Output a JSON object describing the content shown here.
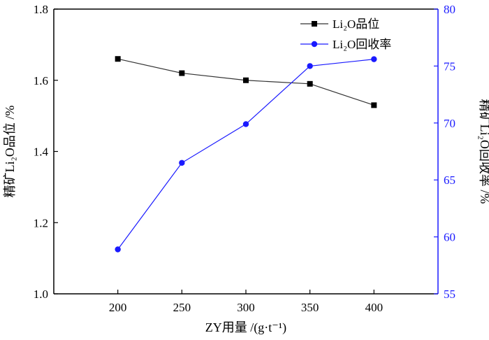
{
  "chart_data": {
    "type": "line",
    "x": [
      200,
      250,
      300,
      350,
      400
    ],
    "xticks": [
      "200",
      "250",
      "300",
      "350",
      "400"
    ],
    "xlabel": "ZY用量 /(g·t⁻¹)",
    "xlim": [
      150,
      450
    ],
    "y_left": {
      "label": "精矿Li₂O品位 /%",
      "ticks": [
        "1.0",
        "1.2",
        "1.4",
        "1.6",
        "1.8"
      ],
      "lim": [
        1.0,
        1.8
      ],
      "color": "#000000"
    },
    "y_right": {
      "label": "精矿Li₂O回收率 /%",
      "ticks": [
        "55",
        "60",
        "65",
        "70",
        "75",
        "80"
      ],
      "lim": [
        55,
        80
      ],
      "color": "#1a1aff"
    },
    "series": [
      {
        "name": "Li₂O品位",
        "axis": "left",
        "marker": "square",
        "color": "#000000",
        "line_color": "#333333",
        "values": [
          1.66,
          1.62,
          1.6,
          1.59,
          1.53
        ]
      },
      {
        "name": "Li₂O回收率",
        "axis": "right",
        "marker": "circle",
        "color": "#1a1aff",
        "line_color": "#1a1aff",
        "values": [
          58.9,
          66.5,
          69.9,
          75.0,
          75.6
        ]
      }
    ],
    "legend": {
      "position": "top-right",
      "entries": [
        "Li₂O品位",
        "Li₂O回收率"
      ]
    },
    "grid": false
  }
}
